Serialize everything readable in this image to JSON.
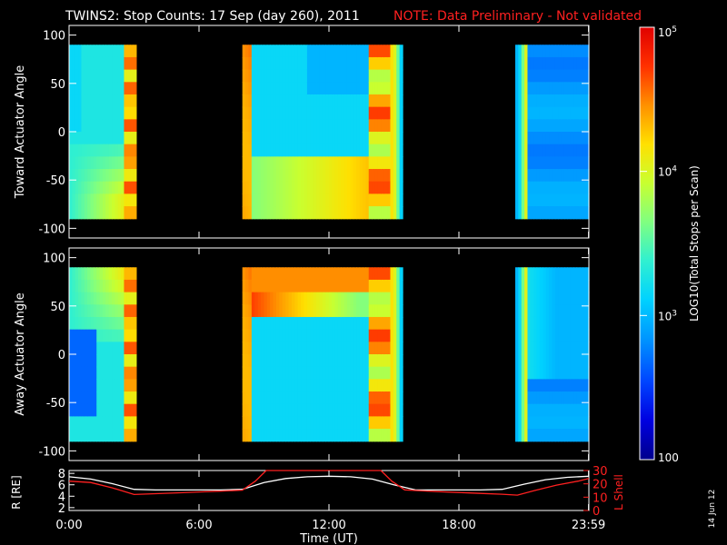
{
  "header": {
    "title": "TWINS2: Stop Counts: 17 Sep (day 260), 2011",
    "note": "NOTE: Data Preliminary - Not validated"
  },
  "footer": {
    "date_stamp": "14 Jun 12"
  },
  "colors": {
    "background": "#000000",
    "axes": "#ffffff",
    "note": "#ff2020",
    "r_line": "#ffffff",
    "lshell_line": "#ff2020",
    "colormap": [
      "#00008c",
      "#0000e0",
      "#0044ff",
      "#0096ff",
      "#00d2ff",
      "#30f0d0",
      "#80ff80",
      "#c8ff30",
      "#ffe000",
      "#ff9000",
      "#ff3000",
      "#e00000"
    ]
  },
  "chart_data": [
    {
      "type": "heatmap",
      "name": "toward",
      "ylabel": "Toward Actuator Angle",
      "ylim": [
        -110,
        110
      ],
      "yticks": [
        "100",
        "50",
        "0",
        "-50",
        "-100"
      ],
      "xlim_hours": [
        0,
        24
      ],
      "data_y_range": [
        -90,
        90
      ],
      "segments_hours": [
        [
          0.0,
          3.1
        ],
        [
          8.0,
          15.4
        ],
        [
          20.6,
          24.0
        ]
      ]
    },
    {
      "type": "heatmap",
      "name": "away",
      "ylabel": "Away Actuator Angle",
      "ylim": [
        -110,
        110
      ],
      "yticks": [
        "100",
        "50",
        "0",
        "-50",
        "-100"
      ],
      "xlim_hours": [
        0,
        24
      ],
      "data_y_range": [
        -90,
        90
      ],
      "segments_hours": [
        [
          0.0,
          3.1
        ],
        [
          8.0,
          15.4
        ],
        [
          20.6,
          24.0
        ]
      ]
    },
    {
      "type": "line",
      "name": "ephemeris",
      "ylabel_left": "R [RE]",
      "ylabel_right": "L Shell",
      "yticks_left": [
        "8",
        "6",
        "4",
        "2"
      ],
      "yticks_right": [
        "30",
        "20",
        "10",
        "0"
      ],
      "ylim_left": [
        1.5,
        8.5
      ],
      "ylim_right": [
        0,
        30
      ],
      "series": [
        {
          "name": "R [RE]",
          "axis": "left",
          "x": [
            0,
            1,
            2,
            3,
            4,
            5,
            6,
            7,
            8,
            9,
            10,
            11,
            12,
            13,
            14,
            15,
            16,
            17,
            18,
            19,
            20,
            21,
            22,
            23,
            24
          ],
          "values": [
            7.4,
            7.0,
            6.2,
            5.2,
            5.1,
            5.1,
            5.1,
            5.1,
            5.2,
            6.4,
            7.1,
            7.4,
            7.5,
            7.4,
            7.0,
            6.0,
            5.1,
            5.1,
            5.1,
            5.1,
            5.2,
            6.1,
            6.9,
            7.3,
            7.5
          ]
        },
        {
          "name": "L Shell",
          "axis": "right",
          "x": [
            0,
            1,
            2,
            3,
            4,
            5,
            6,
            7,
            8,
            8.6,
            9.1,
            14.4,
            14.9,
            15.5,
            16,
            17,
            18,
            19,
            20,
            20.7,
            21.5,
            22.5,
            23.5,
            24
          ],
          "values": [
            22,
            21,
            17,
            12,
            12.6,
            13.2,
            13.9,
            14.5,
            15.3,
            22,
            31,
            31,
            22,
            15.5,
            15,
            14.2,
            13.5,
            12.8,
            12.2,
            11.5,
            15,
            19,
            22,
            24
          ]
        }
      ]
    },
    {
      "type": "colorbar",
      "label": "LOG10(Total Stops per Scan)",
      "scale": "log",
      "range": [
        100,
        100000
      ],
      "tick_labels": [
        {
          "value": 100000,
          "base": "10",
          "exp": "5"
        },
        {
          "value": 10000,
          "base": "10",
          "exp": "4"
        },
        {
          "value": 1000,
          "base": "10",
          "exp": "3"
        },
        {
          "value": 100,
          "base": "100",
          "exp": ""
        }
      ]
    }
  ],
  "xaxis": {
    "label": "Time (UT)",
    "ticks": [
      {
        "hour": 0,
        "label": "0:00"
      },
      {
        "hour": 6,
        "label": "6:00"
      },
      {
        "hour": 12,
        "label": "12:00"
      },
      {
        "hour": 18,
        "label": "18:00"
      },
      {
        "hour": 23.983,
        "label": "23:59"
      }
    ]
  }
}
